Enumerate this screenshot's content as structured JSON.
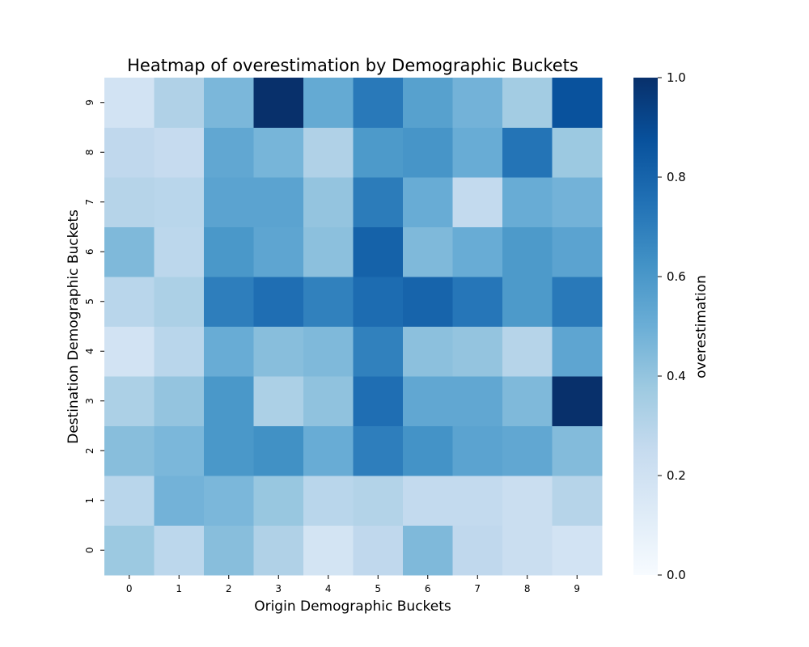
{
  "chart_data": {
    "type": "heatmap",
    "title": "Heatmap of overestimation by Demographic Buckets",
    "xlabel": "Origin Demographic Buckets",
    "ylabel": "Destination Demographic Buckets",
    "x_categories": [
      "0",
      "1",
      "2",
      "3",
      "4",
      "5",
      "6",
      "7",
      "8",
      "9"
    ],
    "y_categories": [
      "0",
      "1",
      "2",
      "3",
      "4",
      "5",
      "6",
      "7",
      "8",
      "9"
    ],
    "colorbar": {
      "label": "overestimation",
      "range": [
        0,
        1
      ],
      "ticks": [
        "0.0",
        "0.2",
        "0.4",
        "0.6",
        "0.8",
        "1.0"
      ],
      "colormap": "Blues"
    },
    "values": [
      [
        0.38,
        0.28,
        0.43,
        0.32,
        0.18,
        0.27,
        0.45,
        0.27,
        0.23,
        0.19
      ],
      [
        0.29,
        0.48,
        0.46,
        0.39,
        0.29,
        0.31,
        0.26,
        0.26,
        0.23,
        0.3
      ],
      [
        0.43,
        0.46,
        0.6,
        0.63,
        0.51,
        0.7,
        0.62,
        0.55,
        0.53,
        0.44
      ],
      [
        0.33,
        0.4,
        0.6,
        0.33,
        0.41,
        0.76,
        0.53,
        0.53,
        0.45,
        1.0
      ],
      [
        0.19,
        0.29,
        0.51,
        0.43,
        0.45,
        0.69,
        0.42,
        0.4,
        0.3,
        0.54
      ],
      [
        0.29,
        0.33,
        0.7,
        0.76,
        0.69,
        0.77,
        0.8,
        0.73,
        0.59,
        0.72
      ],
      [
        0.45,
        0.28,
        0.6,
        0.54,
        0.42,
        0.81,
        0.45,
        0.51,
        0.59,
        0.55
      ],
      [
        0.3,
        0.29,
        0.55,
        0.55,
        0.4,
        0.71,
        0.51,
        0.26,
        0.51,
        0.48
      ],
      [
        0.27,
        0.25,
        0.53,
        0.47,
        0.32,
        0.59,
        0.61,
        0.51,
        0.74,
        0.38
      ],
      [
        0.19,
        0.32,
        0.46,
        1.0,
        0.52,
        0.72,
        0.56,
        0.48,
        0.36,
        0.87
      ]
    ]
  }
}
